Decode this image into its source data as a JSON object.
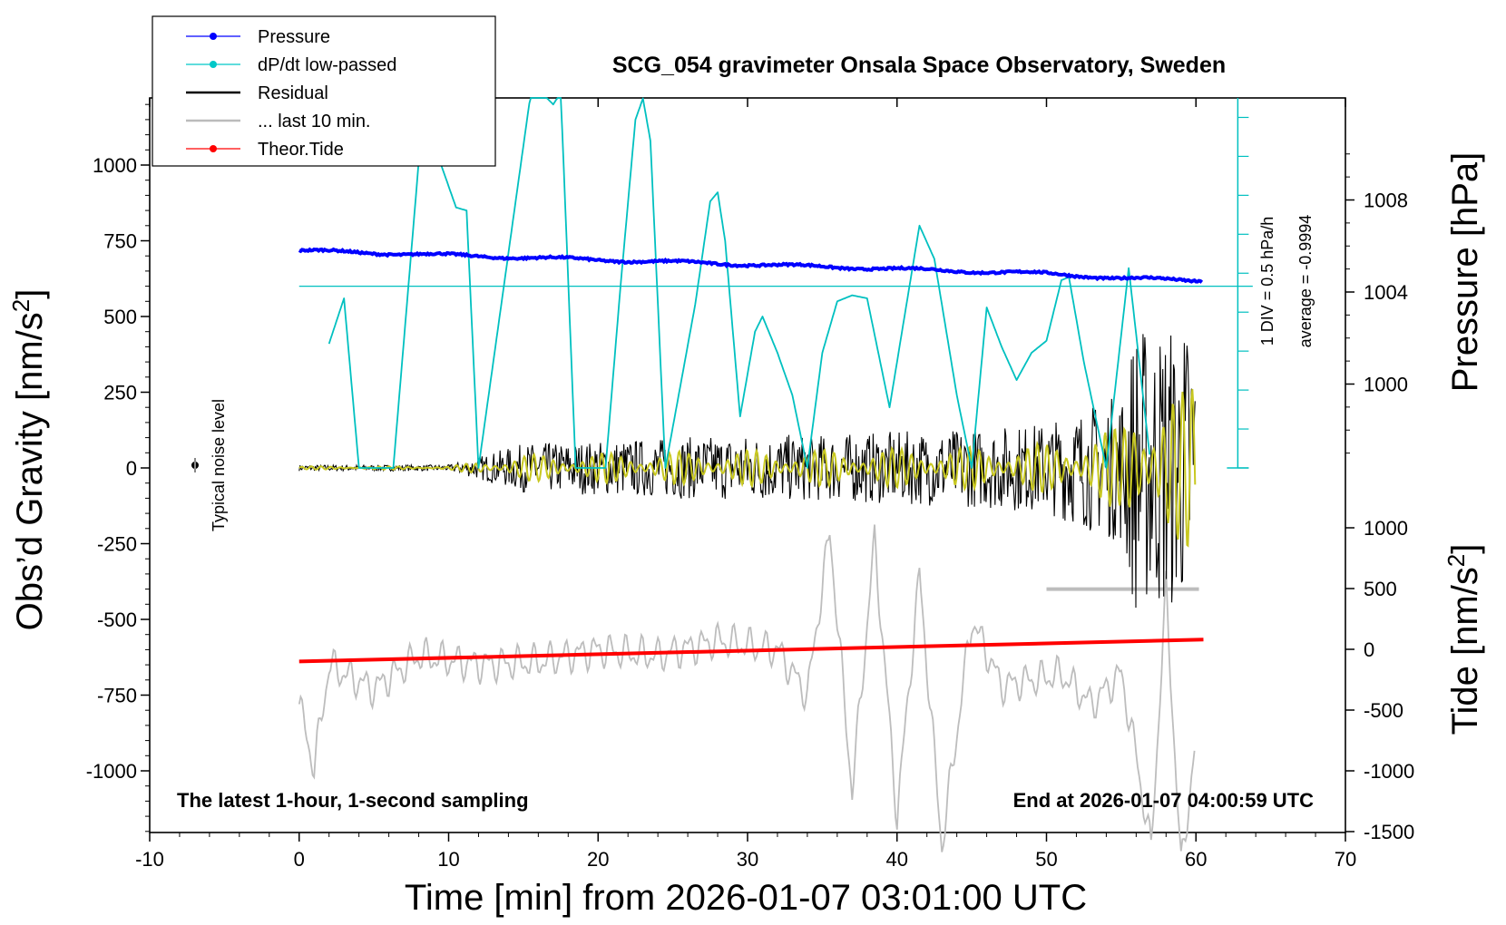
{
  "chart_data": {
    "type": "line",
    "title": "SCG_054 gravimeter Onsala Space Observatory, Sweden",
    "xlabel": "Time [min] from 2026-01-07 03:01:00 UTC",
    "ylabel_left": "Obs'd Gravity [nm/s2]",
    "ylabel_pressure": "Pressure [hPa]",
    "ylabel_tide": "Tide [nm/s2]",
    "xlim": [
      -10,
      70
    ],
    "ylim_gravity": [
      -1200,
      1200
    ],
    "x_ticks": [
      "-10",
      "0",
      "10",
      "20",
      "30",
      "40",
      "50",
      "60",
      "70"
    ],
    "y_ticks_gravity": [
      "1000",
      "750",
      "500",
      "250",
      "0",
      "-250",
      "-500",
      "-750",
      "-1000"
    ],
    "y_ticks_pressure": [
      "1008",
      "1004",
      "1000"
    ],
    "y_ticks_tide": [
      "1000",
      "500",
      "0",
      "-500",
      "-1000",
      "-1500"
    ],
    "legend": [
      {
        "name": "Pressure",
        "color": "#0000ff",
        "marker": "dot"
      },
      {
        "name": "dP/dt low-passed",
        "color": "#00c8c8",
        "marker": "dot"
      },
      {
        "name": "Residual",
        "color": "#000000",
        "marker": "line"
      },
      {
        "name": "... last 10 min.",
        "color": "#bbbbbb",
        "marker": "line"
      },
      {
        "name": "Theor.Tide",
        "color": "#ff0000",
        "marker": "dot"
      }
    ],
    "legend_position": "top-left",
    "pressure_scale_label": "1 DIV = 0.5 hPa/h",
    "average_label": "average = -0.9994",
    "noise_label": "Typical noise level",
    "bottom_left_note": "The latest 1-hour, 1-second sampling",
    "bottom_right_note": "End at 2026-01-07 04:00:59 UTC",
    "series": [
      {
        "name": "Pressure",
        "unit": "hPa",
        "x": [
          0,
          5,
          10,
          15,
          20,
          25,
          30,
          35,
          40,
          45,
          50,
          55,
          60.5
        ],
        "y": [
          1005.8,
          1005.7,
          1005.6,
          1005.5,
          1005.4,
          1005.3,
          1005.2,
          1005.1,
          1005.0,
          1004.9,
          1004.8,
          1004.6,
          1004.5
        ]
      },
      {
        "name": "dP/dt low-passed",
        "unit": "gravity-axis units",
        "x": [
          2,
          3,
          4,
          6.3,
          8.2,
          9.5,
          10.5,
          11.2,
          12,
          15.5,
          16.2,
          17,
          17.5,
          18.5,
          20.5,
          21.5,
          22.5,
          23,
          23.5,
          24.5,
          26.5,
          27.5,
          28,
          28.5,
          29.5,
          30.5,
          31,
          32,
          33,
          34,
          35,
          36,
          37,
          38,
          39.5,
          40.5,
          41.5,
          42.5,
          44,
          45,
          46,
          47,
          48,
          49,
          50,
          51,
          51.5,
          52.5,
          54,
          55.5,
          57
        ],
        "y": [
          410,
          560,
          0,
          0,
          1130,
          1000,
          860,
          850,
          0,
          1240,
          1240,
          1200,
          1240,
          0,
          0,
          600,
          1150,
          1220,
          1080,
          0,
          540,
          880,
          910,
          750,
          170,
          450,
          500,
          380,
          240,
          0,
          380,
          550,
          570,
          560,
          200,
          500,
          800,
          690,
          240,
          0,
          530,
          400,
          290,
          380,
          420,
          620,
          630,
          350,
          0,
          660,
          0
        ]
      },
      {
        "name": "Residual",
        "unit": "nm/s2",
        "x": [
          0,
          10,
          15,
          20,
          25,
          30,
          35,
          40,
          45,
          50,
          55,
          56,
          57,
          58,
          59,
          60
        ],
        "amplitude": [
          10,
          10,
          80,
          90,
          100,
          110,
          110,
          120,
          130,
          150,
          250,
          500,
          450,
          500,
          450,
          550
        ]
      },
      {
        "name": "... last 10 min.",
        "unit": "nm/s2",
        "x": [
          0,
          1,
          2,
          3,
          5,
          8,
          12,
          16,
          20,
          24,
          28,
          32,
          34,
          35.5,
          37,
          38.5,
          40,
          41.5,
          43,
          45,
          47,
          49,
          51,
          53,
          55,
          56,
          57,
          58,
          59,
          60
        ],
        "y": [
          -780,
          -990,
          -650,
          -680,
          -730,
          -620,
          -650,
          -640,
          -600,
          -620,
          -570,
          -600,
          -750,
          -210,
          -1070,
          -240,
          -1150,
          -350,
          -1250,
          -500,
          -720,
          -700,
          -680,
          -780,
          -680,
          -950,
          -1260,
          -400,
          -1320,
          -900
        ]
      },
      {
        "name": "Theor.Tide",
        "unit": "nm/s2",
        "x": [
          0,
          60.5
        ],
        "y": [
          -100,
          80
        ]
      }
    ]
  }
}
